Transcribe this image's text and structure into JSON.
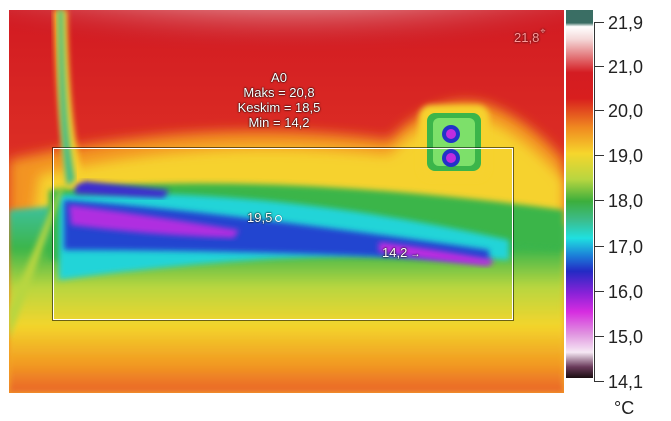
{
  "image": {
    "subject": "thermal image of interior wall corner with pipe and box",
    "palette": "rainbow-hc"
  },
  "roi": {
    "name": "A0",
    "max": "Maks = 20,8",
    "avg": "Keskim = 18,5",
    "min": "Min = 14,2"
  },
  "spots": {
    "hot": "21,8",
    "center": "19,5",
    "cold": "14,2"
  },
  "scale": {
    "labels": [
      "21,9",
      "21,0",
      "20,0",
      "19,0",
      "18,0",
      "17,0",
      "16,0",
      "15,0",
      "14,1"
    ],
    "unit": "°C"
  }
}
